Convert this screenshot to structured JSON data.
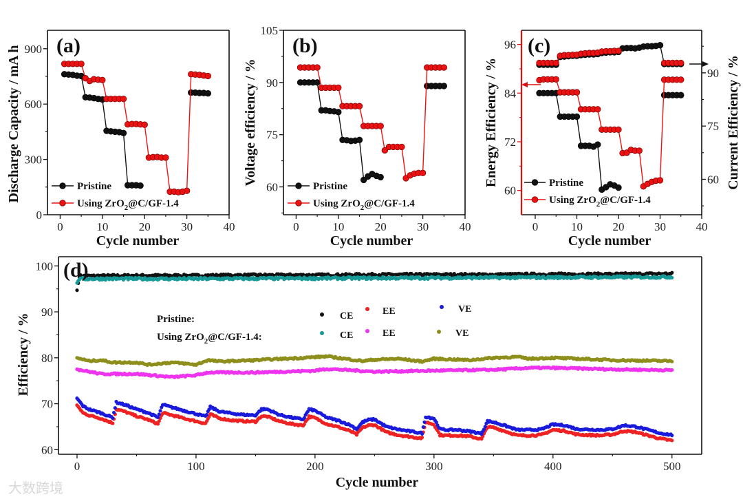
{
  "watermark": "大数跨境",
  "colors": {
    "pristine": "#111111",
    "zro2": "#ee1111",
    "ce_zro2": "#169a98",
    "ee_pristine": "#ee2222",
    "ve_pristine": "#1a1adc",
    "ee_zro2": "#ee33ee",
    "ve_zro2": "#8e8e1c",
    "axis_c_left": "#dd1111"
  },
  "chart_data": [
    {
      "type": "line",
      "panel_label": "(a)",
      "xlabel": "Cycle number",
      "ylabel": "Discharge Capacity / mA h",
      "xlim": [
        -3,
        40
      ],
      "ylim": [
        0,
        1000
      ],
      "xticks": [
        "0",
        "10",
        "20",
        "30",
        "40"
      ],
      "yticks": [
        "0",
        "300",
        "600",
        "900"
      ],
      "legend": {
        "placement": "bottom-left",
        "pristine": "Pristine",
        "zro2_a": "Using ZrO",
        "zro2_sub": "2",
        "zro2_b": "@C/GF-1.4"
      },
      "series": [
        {
          "name": "Pristine",
          "color_key": "pristine",
          "x": [
            1,
            2,
            3,
            4,
            5,
            6,
            7,
            8,
            9,
            10,
            11,
            12,
            13,
            14,
            15,
            16,
            17,
            18,
            19,
            31,
            32,
            33,
            34,
            35
          ],
          "y": [
            762,
            760,
            758,
            754,
            752,
            637,
            635,
            632,
            628,
            625,
            455,
            452,
            450,
            448,
            443,
            160,
            160,
            160,
            158,
            662,
            662,
            660,
            660,
            658
          ]
        },
        {
          "name": "Using ZrO2@C/GF-1.4",
          "color_key": "zro2",
          "x": [
            1,
            2,
            3,
            4,
            5,
            6,
            7,
            8,
            9,
            10,
            11,
            12,
            13,
            14,
            15,
            16,
            17,
            18,
            19,
            20,
            21,
            22,
            23,
            24,
            25,
            26,
            27,
            28,
            29,
            30,
            31,
            32,
            33,
            34,
            35
          ],
          "y": [
            818,
            818,
            818,
            818,
            818,
            740,
            725,
            735,
            732,
            730,
            628,
            628,
            628,
            628,
            628,
            490,
            492,
            492,
            490,
            488,
            310,
            312,
            313,
            310,
            310,
            125,
            125,
            122,
            125,
            130,
            762,
            760,
            758,
            755,
            752
          ]
        }
      ]
    },
    {
      "type": "line",
      "panel_label": "(b)",
      "xlabel": "Cycle number",
      "ylabel": "Voltage efficiency / %",
      "xlim": [
        -3,
        40
      ],
      "ylim": [
        52,
        105
      ],
      "xticks": [
        "0",
        "10",
        "20",
        "30",
        "40"
      ],
      "yticks": [
        "60",
        "75",
        "90",
        "105"
      ],
      "legend": {
        "placement": "bottom-left",
        "pristine": "Pristine",
        "zro2_a": "Using ZrO",
        "zro2_sub": "2",
        "zro2_b": "@C/GF-1.4"
      },
      "series": [
        {
          "name": "Pristine",
          "color_key": "pristine",
          "x": [
            1,
            2,
            3,
            4,
            5,
            6,
            7,
            8,
            9,
            10,
            11,
            12,
            13,
            14,
            15,
            16,
            17,
            18,
            19,
            20,
            31,
            32,
            33,
            34,
            35
          ],
          "y": [
            90,
            90,
            90,
            90,
            90,
            82,
            82,
            81.8,
            81.7,
            81.5,
            73.5,
            73.4,
            73.2,
            73.3,
            73.5,
            62,
            63,
            63.7,
            63.2,
            62.8,
            89,
            89,
            89,
            89,
            89
          ]
        },
        {
          "name": "Using ZrO2@C/GF-1.4",
          "color_key": "zro2",
          "x": [
            1,
            2,
            3,
            4,
            5,
            6,
            7,
            8,
            9,
            10,
            11,
            12,
            13,
            14,
            15,
            16,
            17,
            18,
            19,
            20,
            21,
            22,
            23,
            24,
            25,
            26,
            27,
            28,
            29,
            30,
            31,
            32,
            33,
            34,
            35
          ],
          "y": [
            94.3,
            94.3,
            94.3,
            94.3,
            94.3,
            88.5,
            88.5,
            88.5,
            88.5,
            88.5,
            83.2,
            83.2,
            83.2,
            83.2,
            83.2,
            77.5,
            77.5,
            77.5,
            77.5,
            77.5,
            70.5,
            71.5,
            71.5,
            71.5,
            71.5,
            62.5,
            63.3,
            63.8,
            64,
            64,
            94.3,
            94.3,
            94.3,
            94.3,
            94.3
          ]
        }
      ]
    },
    {
      "type": "line",
      "panel_label": "(c)",
      "xlabel": "Cycle number",
      "ylabel": "Energy Efficiency / %",
      "ylabel_right": "Current Efficiency / %",
      "xlim": [
        -3.3,
        40
      ],
      "ylim": [
        54,
        99.5
      ],
      "ylim_right": [
        50,
        102
      ],
      "xticks": [
        "0",
        "10",
        "20",
        "30",
        "40"
      ],
      "yticks": [
        "60",
        "72",
        "84",
        "96"
      ],
      "yticks_right": [
        "60",
        "75",
        "90"
      ],
      "legend": {
        "placement": "bottom-left",
        "pristine": "Pristine",
        "zro2_a": "Using ZrO",
        "zro2_sub": "2",
        "zro2_b": "@C/GF-1.4"
      },
      "series": [
        {
          "name": "Pristine EE",
          "color_key": "pristine",
          "axis": "left",
          "x": [
            1,
            2,
            3,
            4,
            5,
            6,
            7,
            8,
            9,
            10,
            11,
            12,
            13,
            14,
            15,
            16,
            17,
            18,
            19,
            20,
            31,
            32,
            33,
            34,
            35
          ],
          "y": [
            84,
            84,
            84,
            84,
            84,
            78.2,
            78.2,
            78.2,
            78.2,
            78.2,
            71,
            71,
            71,
            70.8,
            71.3,
            60.2,
            60.8,
            61.5,
            61.2,
            60.7,
            83.5,
            83.5,
            83.5,
            83.5,
            83.5
          ]
        },
        {
          "name": "Using ZrO2@C/GF-1.4 EE",
          "color_key": "zro2",
          "axis": "left",
          "x": [
            1,
            2,
            3,
            4,
            5,
            6,
            7,
            8,
            9,
            10,
            11,
            12,
            13,
            14,
            15,
            16,
            17,
            18,
            19,
            20,
            21,
            22,
            23,
            24,
            25,
            26,
            27,
            28,
            29,
            30,
            31,
            32,
            33,
            34,
            35
          ],
          "y": [
            87.2,
            87.4,
            87.4,
            87.4,
            87.4,
            84.2,
            84.2,
            84.2,
            84.2,
            84.2,
            80,
            80,
            80,
            80,
            80,
            75,
            75,
            75,
            75,
            75,
            69.2,
            69.3,
            70,
            69.8,
            69.8,
            61,
            61.6,
            62.1,
            62.4,
            62.5,
            87.3,
            87.3,
            87.3,
            87.3,
            87.3
          ]
        },
        {
          "name": "Pristine CE",
          "color_key": "pristine",
          "axis": "right",
          "x": [
            1,
            2,
            3,
            4,
            5,
            6,
            7,
            8,
            9,
            10,
            11,
            12,
            13,
            14,
            15,
            16,
            17,
            18,
            19,
            20,
            21,
            22,
            23,
            24,
            25,
            26,
            27,
            28,
            29,
            30,
            31,
            32,
            33,
            34,
            35
          ],
          "y": [
            92.3,
            92.3,
            92.3,
            92.3,
            92.3,
            94.5,
            94.6,
            94.7,
            94.8,
            94.8,
            95,
            95.1,
            95.2,
            95.2,
            95.3,
            95.6,
            95.7,
            95.8,
            95.8,
            95.9,
            96.9,
            97,
            97,
            96.9,
            97.1,
            97.4,
            97.5,
            97.5,
            97.6,
            97.8,
            92.5,
            92.5,
            92.5,
            92.5,
            92.5
          ]
        },
        {
          "name": "Using ZrO2@C/GF-1.4 CE",
          "color_key": "zro2",
          "axis": "right",
          "x": [
            1,
            2,
            3,
            4,
            5,
            6,
            7,
            8,
            9,
            10,
            11,
            12,
            13,
            14,
            15,
            16,
            17,
            18,
            19,
            20,
            31,
            32,
            33,
            34,
            35
          ],
          "y": [
            92.8,
            92.8,
            92.8,
            92.8,
            92.8,
            94.8,
            95,
            95,
            95.1,
            95.1,
            95.4,
            95.5,
            95.6,
            95.6,
            95.7,
            96,
            96.1,
            96.1,
            96.2,
            96.2,
            92.8,
            92.8,
            92.8,
            92.8,
            92.8
          ]
        }
      ]
    },
    {
      "type": "scatter",
      "panel_label": "(d)",
      "xlabel": "Cycle number",
      "ylabel": "Efficiency / %",
      "xlim": [
        -15.6,
        525
      ],
      "ylim": [
        59,
        102
      ],
      "xticks": [
        "0",
        "100",
        "200",
        "300",
        "400",
        "500"
      ],
      "yticks": [
        "60",
        "70",
        "80",
        "90",
        "100"
      ],
      "legend": {
        "placement": "top-left",
        "pristine": "Pristine:",
        "zro2_a": "Using ZrO",
        "zro2_sub": "2",
        "zro2_b": "@C/GF-1.4:",
        "ce": "CE",
        "ee": "EE",
        "ve": "VE"
      },
      "series": [
        {
          "name": "Pristine CE",
          "color_key": "pristine",
          "x": [
            0,
            2,
            50,
            100,
            150,
            200,
            250,
            300,
            350,
            400,
            450,
            500
          ],
          "y": [
            94.7,
            97.8,
            97.9,
            97.9,
            98,
            98,
            98.1,
            98.1,
            98.1,
            98.2,
            98.2,
            98.3
          ]
        },
        {
          "name": "Pristine EE",
          "color_key": "ee_pristine",
          "x": [
            0,
            5,
            10,
            20,
            30,
            33,
            40,
            50,
            60,
            68,
            72,
            80,
            90,
            100,
            108,
            112,
            120,
            130,
            140,
            150,
            155,
            160,
            170,
            180,
            190,
            195,
            200,
            210,
            220,
            230,
            235,
            240,
            245,
            250,
            260,
            270,
            280,
            290,
            293,
            300,
            305,
            310,
            320,
            330,
            340,
            345,
            350,
            360,
            370,
            380,
            390,
            400,
            410,
            420,
            430,
            440,
            450,
            460,
            470,
            480,
            490,
            500
          ],
          "y": [
            69.7,
            68,
            67.5,
            66.8,
            65.8,
            68.8,
            68.3,
            67.3,
            66.5,
            65.6,
            68,
            67.5,
            66.8,
            66.2,
            65.7,
            67.7,
            66.8,
            66.4,
            66.2,
            66.1,
            67.3,
            67.2,
            66.2,
            65.6,
            65.3,
            67.2,
            66.9,
            65.6,
            64.9,
            64,
            63.3,
            64.8,
            65.3,
            65.4,
            63.8,
            63.2,
            62.8,
            62.5,
            66,
            65.5,
            63.2,
            63.1,
            63.1,
            62.9,
            62.3,
            65,
            64.8,
            64,
            63.1,
            63.1,
            63.2,
            64.3,
            64.1,
            63.3,
            63.2,
            63.1,
            63.3,
            64.1,
            63.8,
            63.1,
            62.4,
            62
          ]
        },
        {
          "name": "Pristine VE",
          "color_key": "ve_pristine",
          "x": [
            0,
            5,
            10,
            20,
            30,
            33,
            40,
            50,
            60,
            68,
            72,
            80,
            90,
            100,
            108,
            112,
            120,
            130,
            140,
            150,
            155,
            160,
            170,
            180,
            190,
            195,
            200,
            210,
            220,
            230,
            235,
            240,
            245,
            250,
            260,
            270,
            280,
            290,
            293,
            300,
            305,
            310,
            320,
            330,
            340,
            345,
            350,
            360,
            370,
            380,
            390,
            400,
            410,
            420,
            430,
            440,
            450,
            460,
            470,
            480,
            490,
            500
          ],
          "y": [
            71.2,
            69.5,
            68.8,
            68,
            67,
            70.3,
            69.8,
            68.8,
            68,
            67,
            69.8,
            69.2,
            68.5,
            67.8,
            67.2,
            69.3,
            68.3,
            67.9,
            67.6,
            67.5,
            68.8,
            68.8,
            67.6,
            67,
            66.6,
            68.8,
            68.5,
            67,
            66.3,
            65.3,
            64.5,
            66,
            66.5,
            66.6,
            65,
            64.4,
            64,
            63.6,
            67.2,
            66.8,
            64.5,
            64.3,
            64.3,
            64,
            63.5,
            66.2,
            66,
            65.2,
            64.3,
            64.3,
            64.4,
            65.5,
            65.3,
            64.5,
            64.4,
            64.3,
            64.5,
            65.3,
            65,
            64.3,
            63.6,
            63.2
          ]
        },
        {
          "name": "Using ZrO2@C/GF-1.4 CE",
          "color_key": "ce_zro2",
          "x": [
            0,
            2,
            100,
            200,
            300,
            400,
            500
          ],
          "y": [
            96.3,
            97.2,
            97.2,
            97.3,
            97.4,
            97.5,
            97.6
          ]
        },
        {
          "name": "Using ZrO2@C/GF-1.4 EE",
          "color_key": "ee_zro2",
          "x": [
            0,
            20,
            50,
            80,
            100,
            110,
            150,
            200,
            210,
            250,
            300,
            350,
            380,
            400,
            450,
            500
          ],
          "y": [
            77.5,
            76.5,
            76.5,
            75.8,
            76.2,
            76.8,
            76.8,
            77.2,
            77.6,
            77,
            77.2,
            77.4,
            77.8,
            77.8,
            77.5,
            77.3
          ]
        },
        {
          "name": "Using ZrO2@C/GF-1.4 VE",
          "color_key": "ve_zro2",
          "x": [
            0,
            10,
            20,
            30,
            50,
            60,
            80,
            100,
            110,
            120,
            150,
            190,
            210,
            240,
            250,
            270,
            290,
            300,
            330,
            350,
            370,
            380,
            400,
            450,
            500
          ],
          "y": [
            80,
            79.3,
            79.5,
            79,
            79,
            78.5,
            79,
            78.5,
            79.5,
            79.2,
            79.5,
            80,
            80.3,
            79.3,
            79.6,
            79.8,
            79.2,
            79.8,
            79.5,
            80,
            80.2,
            79.8,
            80,
            79.5,
            79.3
          ]
        }
      ]
    }
  ]
}
